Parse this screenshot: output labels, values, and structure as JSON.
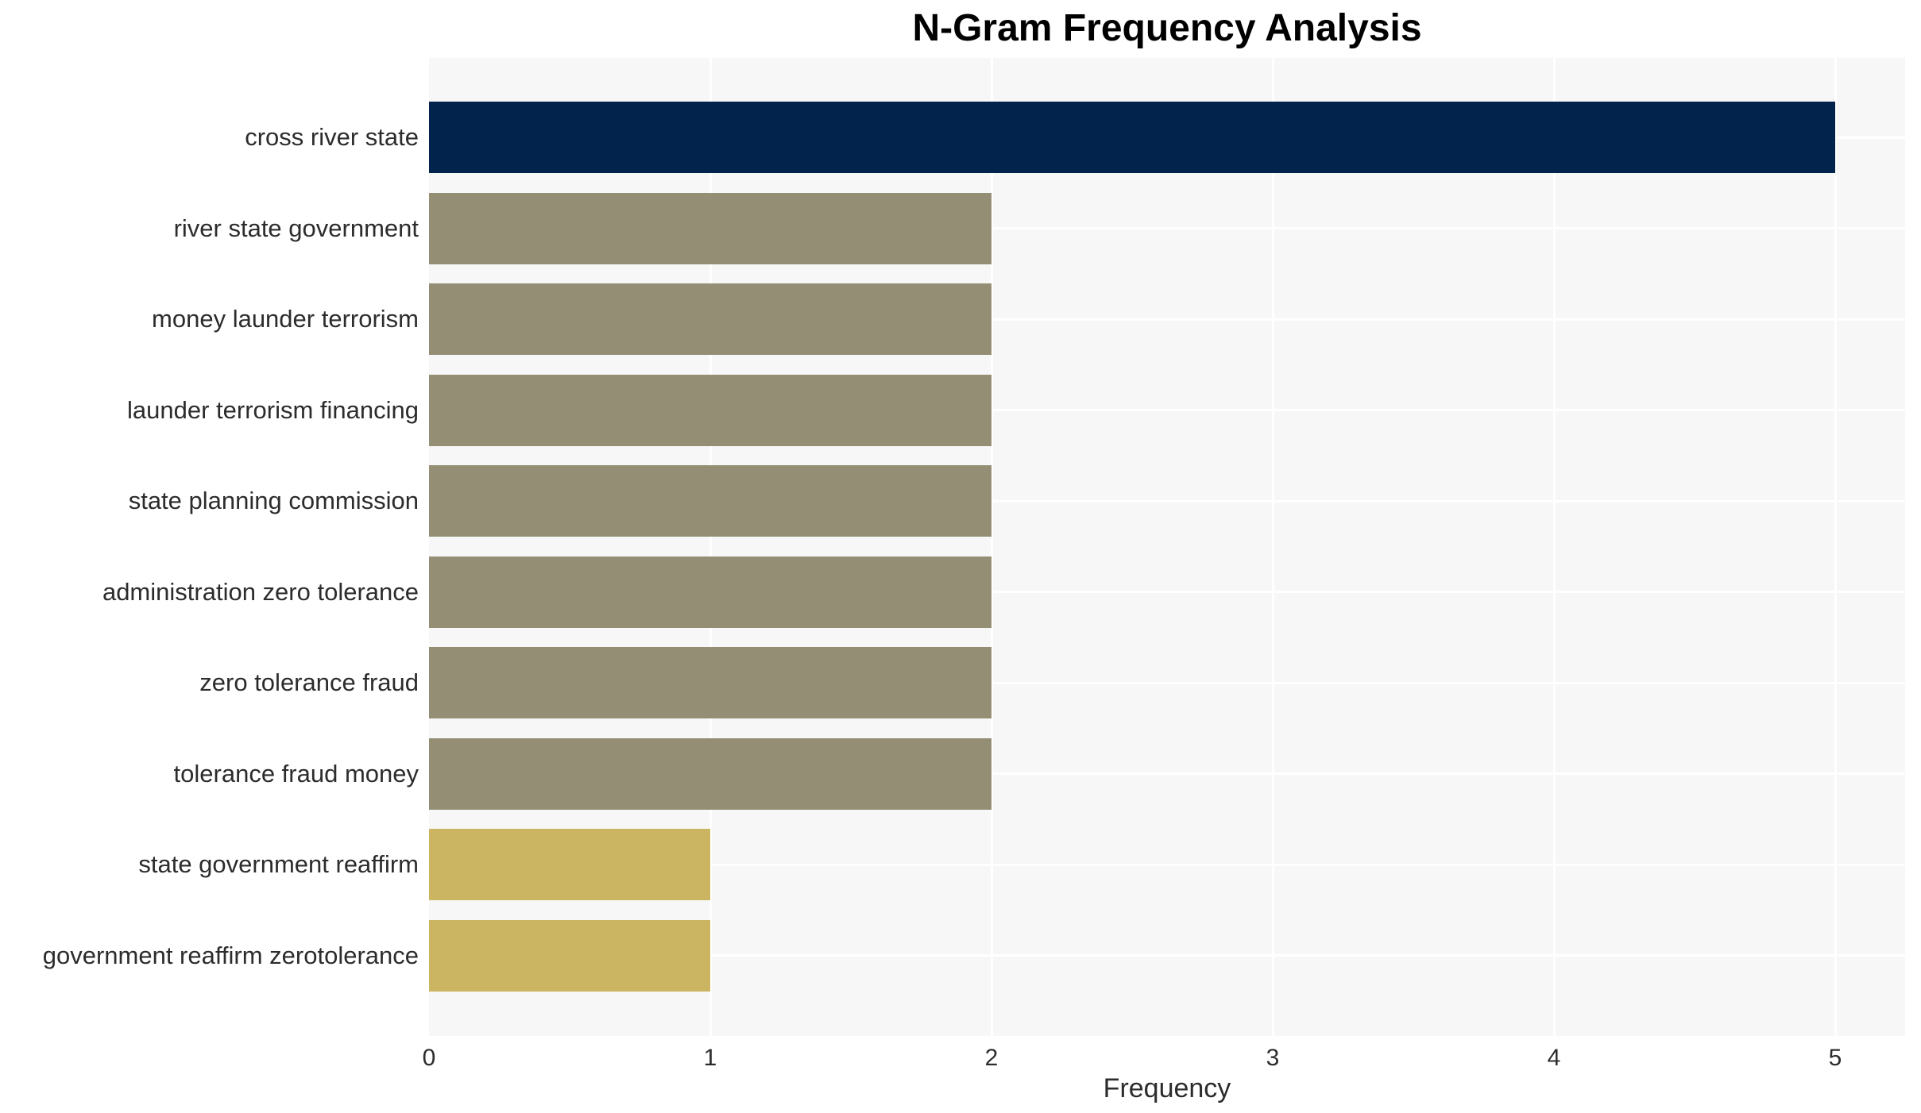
{
  "page": {
    "background": "#ffffff"
  },
  "chart_data": {
    "type": "bar",
    "orientation": "horizontal",
    "title": "N-Gram Frequency Analysis",
    "xlabel": "Frequency",
    "ylabel": "",
    "categories": [
      "cross river state",
      "river state government",
      "money launder terrorism",
      "launder terrorism financing",
      "state planning commission",
      "administration zero tolerance",
      "zero tolerance fraud",
      "tolerance fraud money",
      "state government reaffirm",
      "government reaffirm zerotolerance"
    ],
    "values": [
      5,
      2,
      2,
      2,
      2,
      2,
      2,
      2,
      1,
      1
    ],
    "bar_colors": [
      "#02234c",
      "#938e74",
      "#938e74",
      "#938e74",
      "#938e74",
      "#938e74",
      "#938e74",
      "#938e74",
      "#cbb563",
      "#cbb563"
    ],
    "palette": {
      "navy": "#02234c",
      "olive": "#938e74",
      "khaki": "#cbb563"
    },
    "x_ticks": [
      "0",
      "1",
      "2",
      "3",
      "4",
      "5"
    ],
    "xlim": [
      0,
      5.25
    ],
    "legend": "none",
    "grid": {
      "show": true,
      "color": "#ffffff",
      "vertical_at_ticks": true,
      "horizontal_at_categories": true
    },
    "panel_bg": "#f7f7f7",
    "text_color": "#2c2c2c",
    "title_color": "#000000"
  }
}
